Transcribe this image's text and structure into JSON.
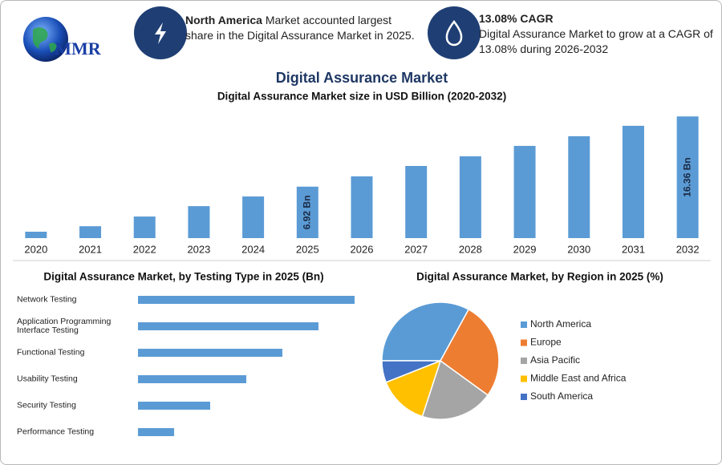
{
  "header": {
    "logo": "MMR",
    "info_1": {
      "highlight": "North America",
      "text": "Market accounted largest share in the Digital Assurance Market in 2025."
    },
    "info_2": {
      "title": "13.08% CAGR",
      "text": "Digital Assurance Market to grow at a CAGR of 13.08% during 2026-2032"
    }
  },
  "chart_data": [
    {
      "type": "bar",
      "title": "Digital Assurance Market",
      "subtitle": "Digital Assurance Market size in USD Billion (2020-2032)",
      "categories": [
        "2020",
        "2021",
        "2022",
        "2023",
        "2024",
        "2025",
        "2026",
        "2027",
        "2028",
        "2029",
        "2030",
        "2031",
        "2032"
      ],
      "values": [
        0.86,
        1.6,
        2.9,
        4.3,
        5.6,
        6.92,
        8.3,
        9.7,
        11.0,
        12.4,
        13.7,
        15.1,
        16.36
      ],
      "value_labels": [
        null,
        null,
        null,
        null,
        null,
        "6.92 Bn",
        null,
        null,
        null,
        null,
        null,
        null,
        "16.36 Bn"
      ],
      "color": "#5b9bd5",
      "ylim": [
        0,
        18
      ]
    },
    {
      "type": "hbar",
      "title": "Digital Assurance Market, by Testing Type in 2025 (Bn)",
      "categories": [
        "Network Testing",
        "Application Programming Interface Testing",
        "Functional Testing",
        "Usability Testing",
        "Security Testing",
        "Performance Testing"
      ],
      "values": [
        1.98,
        1.65,
        1.32,
        0.99,
        0.66,
        0.33
      ],
      "color": "#5b9bd5",
      "xlim": [
        0,
        2.2
      ]
    },
    {
      "type": "pie",
      "title": "Digital Assurance Market, by Region in 2025 (%)",
      "categories": [
        "North America",
        "Europe",
        "Asia Pacific",
        "Middle East and Africa",
        "South America"
      ],
      "values": [
        33,
        27,
        20,
        14,
        6
      ],
      "colors": [
        "#5b9bd5",
        "#ed7d31",
        "#a5a5a5",
        "#ffc000",
        "#4472c4"
      ]
    }
  ]
}
